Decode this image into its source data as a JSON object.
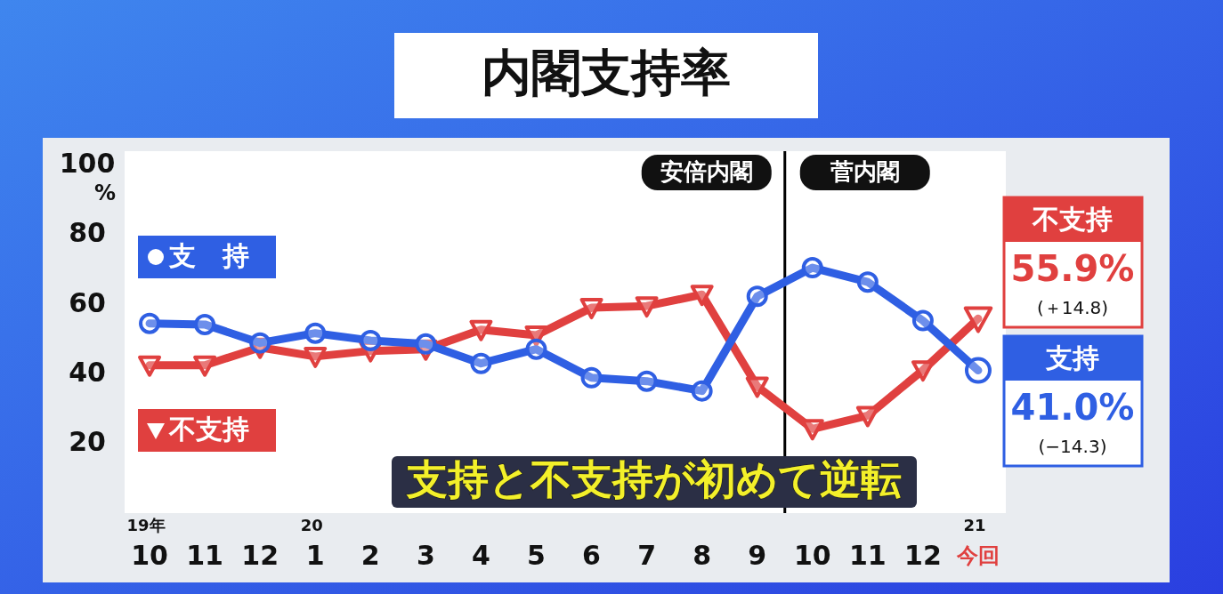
{
  "chart_data": {
    "type": "line",
    "title": "内閣支持率",
    "ylabel": "%",
    "categories": [
      "19年\n10",
      "11",
      "12",
      "20\n1",
      "2",
      "3",
      "4",
      "5",
      "6",
      "7",
      "8",
      "9",
      "10",
      "11",
      "12",
      "21\n今回"
    ],
    "series": [
      {
        "name": "支　持",
        "color": "#2f5fe3",
        "marker": "circle",
        "values": [
          54.5,
          54.2,
          48.9,
          51.7,
          49.6,
          48.6,
          43.0,
          47.1,
          38.9,
          37.9,
          35.1,
          62.3,
          70.5,
          66.4,
          55.3,
          41.0
        ]
      },
      {
        "name": "不支持",
        "color": "#e0403f",
        "marker": "triangle",
        "values": [
          42.5,
          42.5,
          47.6,
          45.0,
          46.6,
          47.1,
          52.7,
          51.1,
          59.0,
          59.5,
          62.8,
          36.4,
          24.2,
          28.0,
          41.1,
          55.9
        ]
      }
    ],
    "ylim": [
      0,
      104
    ],
    "yticks": [
      20,
      40,
      60,
      80,
      100
    ],
    "grid": false,
    "legend": "left",
    "annotations": [
      "安倍内閣",
      "菅内閣",
      "不支持",
      "55.9%",
      "(＋14.8)",
      "支持",
      "41.0%",
      "(−14.3)",
      "支持と不支持が初めて逆転"
    ]
  }
}
